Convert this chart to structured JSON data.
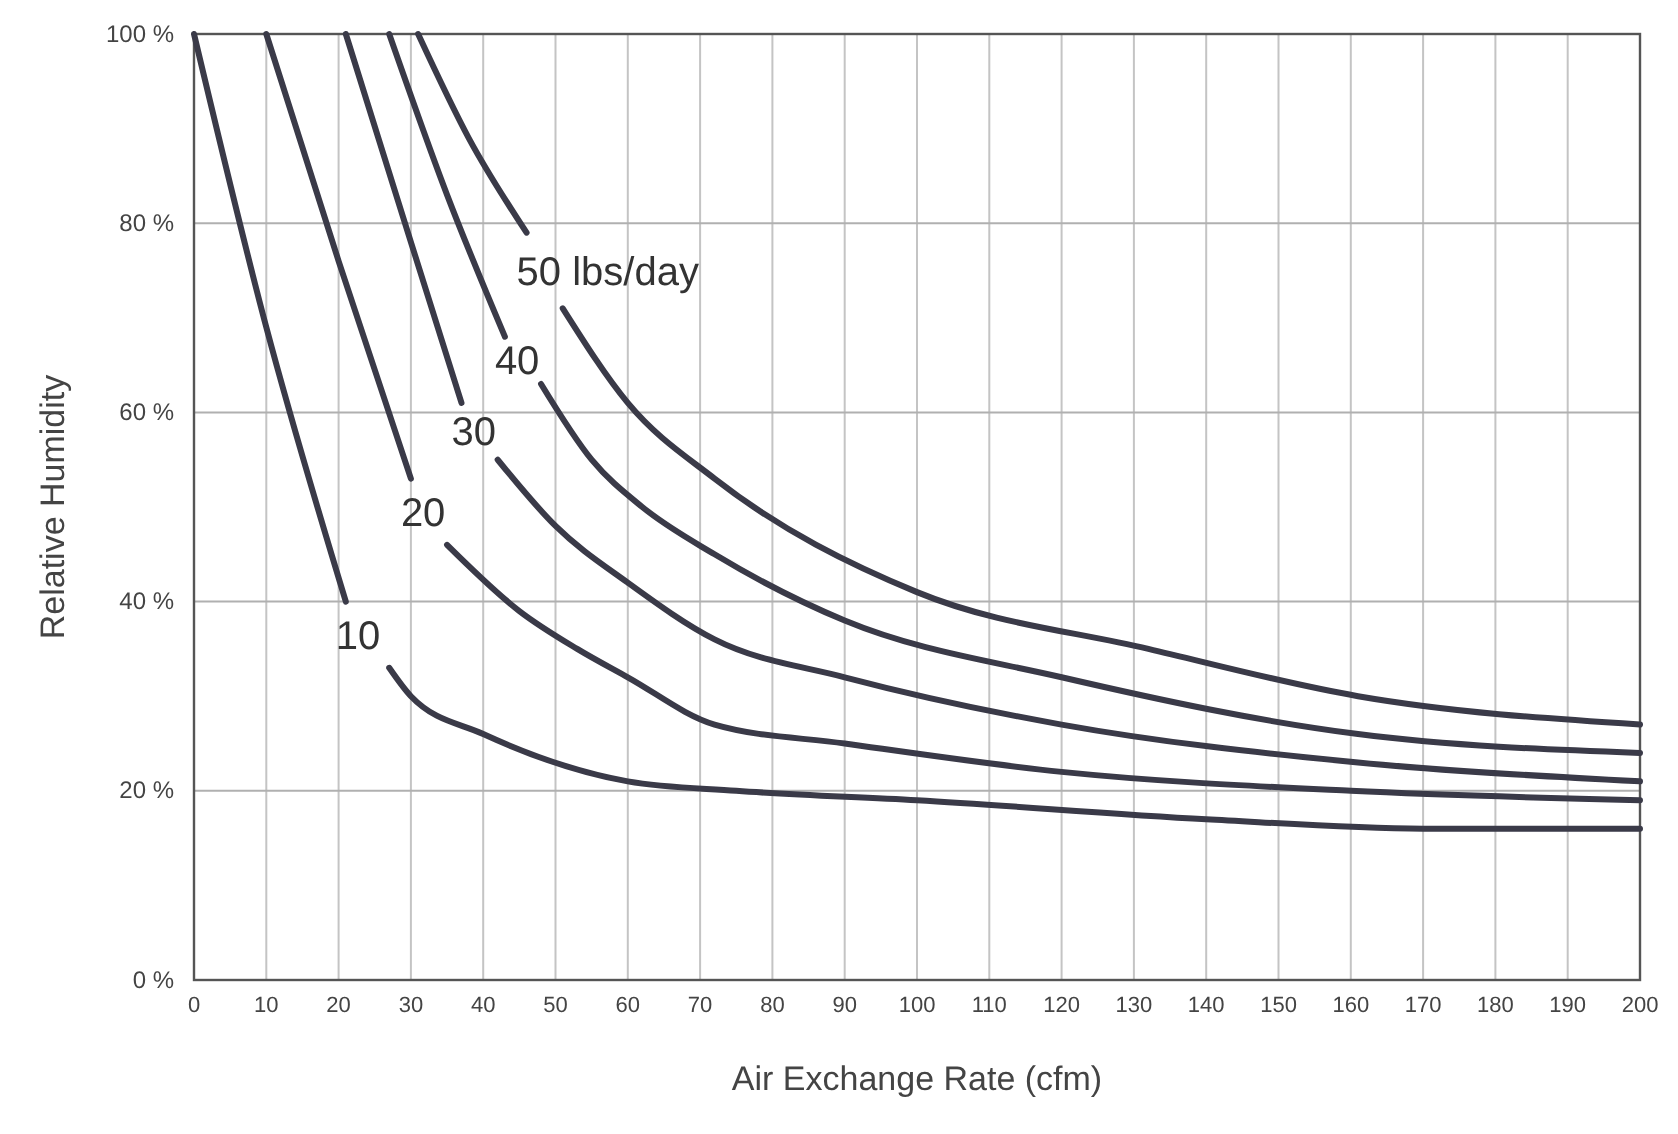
{
  "chart_data": {
    "type": "line",
    "xlabel": "Air Exchange Rate (cfm)",
    "ylabel": "Relative Humidity",
    "xlim": [
      0,
      200
    ],
    "xticks": [
      0,
      10,
      20,
      30,
      40,
      50,
      60,
      70,
      80,
      90,
      100,
      110,
      120,
      130,
      140,
      150,
      160,
      170,
      180,
      190,
      200
    ],
    "ylim": [
      0,
      100
    ],
    "yticks": [
      {
        "value": 0,
        "label": "0 %"
      },
      {
        "value": 20,
        "label": "20 %"
      },
      {
        "value": 40,
        "label": "40 %"
      },
      {
        "value": 60,
        "label": "60 %"
      },
      {
        "value": 80,
        "label": "80 %"
      },
      {
        "value": 100,
        "label": "100 %"
      }
    ],
    "grid": true,
    "legend": false,
    "marker": "none",
    "line_style": "solid",
    "series": [
      {
        "name": "10",
        "color": "#3a3a48",
        "x": [
          0,
          10,
          21,
          24,
          27,
          30,
          40,
          60,
          75,
          100,
          140,
          170,
          200
        ],
        "values": [
          100,
          69,
          40,
          null,
          33,
          30,
          26,
          21,
          20,
          19,
          17,
          16,
          16
        ]
      },
      {
        "name": "20",
        "color": "#3a3a48",
        "x": [
          10,
          20,
          30,
          33,
          35,
          45,
          53,
          60,
          72,
          90,
          120,
          160,
          200
        ],
        "values": [
          100,
          76,
          53,
          null,
          46,
          39,
          35,
          32,
          27,
          25,
          22,
          20,
          19
        ]
      },
      {
        "name": "30",
        "color": "#3a3a48",
        "x": [
          21,
          30,
          37,
          40,
          42,
          50,
          60,
          72,
          90,
          120,
          161,
          200
        ],
        "values": [
          100,
          78,
          61,
          null,
          55,
          48,
          42,
          36,
          32,
          27,
          23,
          21
        ]
      },
      {
        "name": "40",
        "color": "#3a3a48",
        "x": [
          27,
          35,
          43,
          46,
          48,
          55,
          62,
          72,
          90,
          120,
          161,
          200
        ],
        "values": [
          100,
          83,
          68,
          null,
          63,
          55,
          50,
          45,
          38,
          32,
          26,
          24
        ]
      },
      {
        "name": "50 lbs/day",
        "color": "#3a3a48",
        "x": [
          31,
          38,
          46,
          48,
          51,
          60,
          72,
          100,
          132,
          161,
          200
        ],
        "values": [
          100,
          89,
          79,
          null,
          71,
          61,
          53,
          41,
          35,
          30,
          27
        ]
      }
    ]
  }
}
